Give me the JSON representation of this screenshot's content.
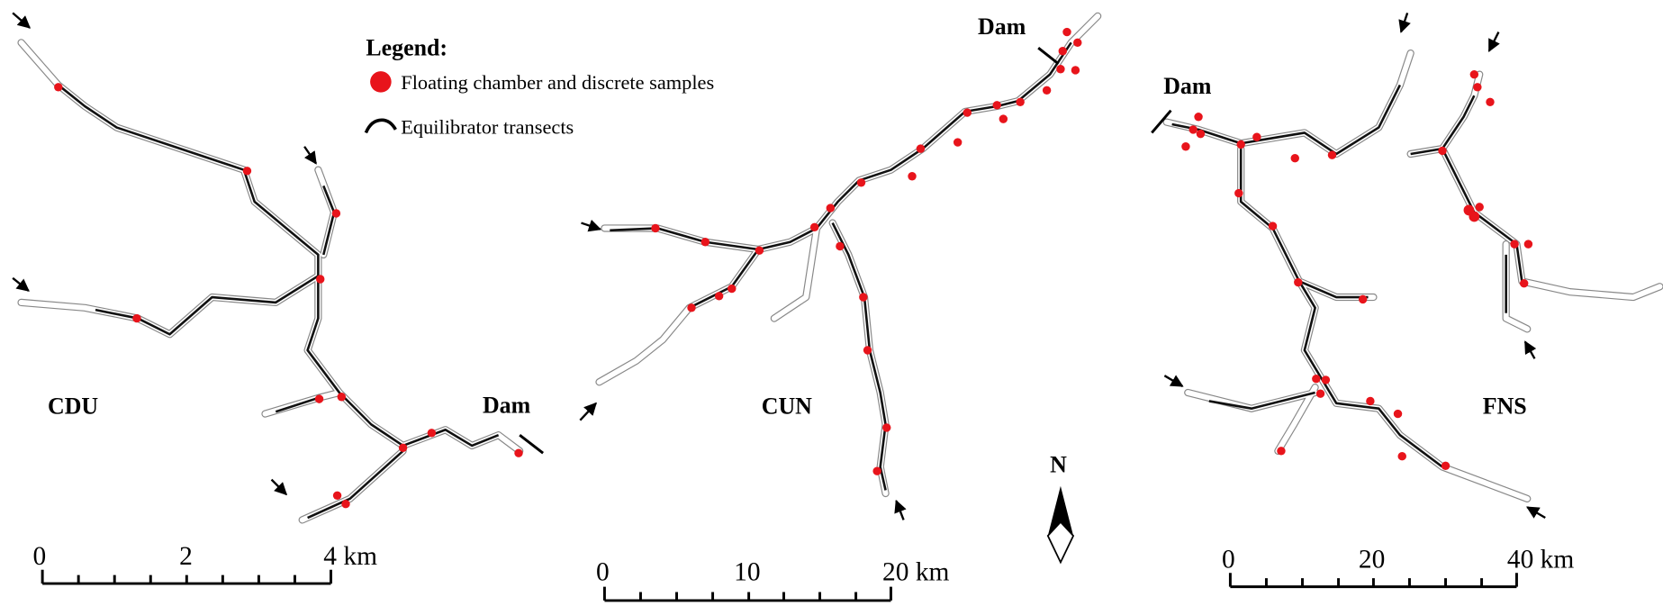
{
  "legend": {
    "title": "Legend:",
    "items": [
      "Floating chamber and discrete samples",
      "Equilibrator transects"
    ]
  },
  "panels": [
    {
      "label": "CDU",
      "dam": "Dam",
      "scale": [
        "0",
        "2",
        "4 km"
      ]
    },
    {
      "label": "CUN",
      "dam": "Dam",
      "scale": [
        "0",
        "10",
        "20 km"
      ]
    },
    {
      "label": "FNS",
      "dam": "Dam",
      "scale": [
        "0",
        "20",
        "40 km"
      ]
    }
  ],
  "north": "N"
}
